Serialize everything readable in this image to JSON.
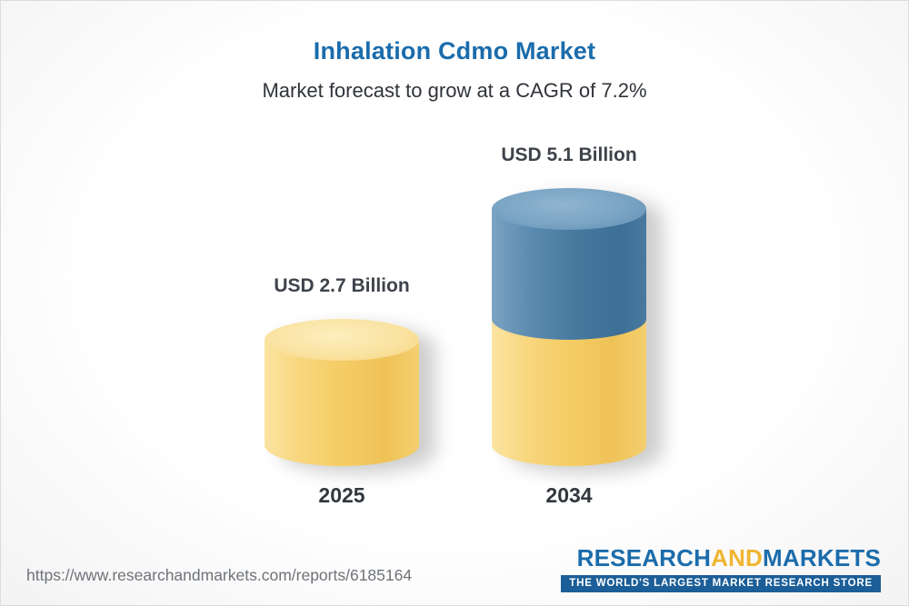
{
  "header": {
    "title": "Inhalation Cdmo Market",
    "subtitle": "Market forecast to grow at a CAGR of 7.2%"
  },
  "chart_data": {
    "type": "bar",
    "bar_style": "cylinder-3d",
    "title": "Inhalation Cdmo Market",
    "subtitle": "Market forecast to grow at a CAGR of 7.2%",
    "cagr_percent": 7.2,
    "unit": "USD Billion",
    "categories": [
      "2025",
      "2034"
    ],
    "values": [
      2.7,
      5.1
    ],
    "value_labels": [
      "USD 2.7 Billion",
      "USD 5.1 Billion"
    ],
    "stacked_note": "2034 bar shows the 2025 base value in yellow with growth portion in blue on top",
    "colors": {
      "base_segment": "#F5CD66",
      "growth_segment": "#47799F",
      "title": "#1B6CAB"
    },
    "ylim": [
      0,
      5.5
    ],
    "grid": false,
    "legend": false,
    "xlabel": "",
    "ylabel": ""
  },
  "footer": {
    "url": "https://www.researchandmarkets.com/reports/6185164",
    "logo": {
      "word1": "RESEARCH",
      "word2": "AND",
      "word3": "MARKETS",
      "tagline": "THE WORLD'S LARGEST MARKET RESEARCH STORE"
    }
  }
}
